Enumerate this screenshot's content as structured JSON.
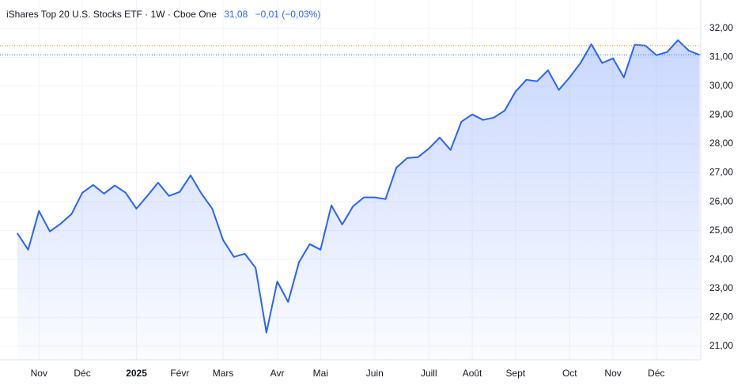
{
  "chart_data": {
    "type": "area",
    "title": "iShares Top 20 U.S. Stocks ETF · 1W · Cboe One",
    "price_label": "31,08",
    "change_label": "−0,01 (−0,03%)",
    "color": "#2962ff",
    "values": [
      24.91,
      24.34,
      25.68,
      24.97,
      25.24,
      25.57,
      26.31,
      26.58,
      26.28,
      26.56,
      26.31,
      25.76,
      26.2,
      26.66,
      26.2,
      26.34,
      26.91,
      26.28,
      25.76,
      24.67,
      24.09,
      24.2,
      23.71,
      21.47,
      23.24,
      22.53,
      23.9,
      24.53,
      24.34,
      25.87,
      25.21,
      25.84,
      26.15,
      26.15,
      26.09,
      27.18,
      27.51,
      27.54,
      27.84,
      28.22,
      27.79,
      28.77,
      29.02,
      28.83,
      28.91,
      29.15,
      29.81,
      30.22,
      30.17,
      30.55,
      29.87,
      30.3,
      30.8,
      31.45,
      30.8,
      30.96,
      30.3,
      31.43,
      31.4,
      31.07,
      31.18,
      31.59,
      31.23,
      31.08
    ],
    "xlim": [
      -1.6,
      63.1
    ],
    "xticks": [
      {
        "value": 2,
        "label": "Nov"
      },
      {
        "value": 6,
        "label": "Déc"
      },
      {
        "value": 11,
        "label": "2025"
      },
      {
        "value": 15,
        "label": "Févr"
      },
      {
        "value": 19,
        "label": "Mars"
      },
      {
        "value": 24,
        "label": "Avr"
      },
      {
        "value": 28,
        "label": "Mai"
      },
      {
        "value": 33,
        "label": "Juin"
      },
      {
        "value": 38,
        "label": "Juill"
      },
      {
        "value": 42,
        "label": "Août"
      },
      {
        "value": 46,
        "label": "Sept"
      },
      {
        "value": 51,
        "label": "Oct"
      },
      {
        "value": 55,
        "label": "Nov"
      },
      {
        "value": 59,
        "label": "Déc"
      }
    ],
    "ylim": [
      20.53,
      32.98
    ],
    "yticks": [
      {
        "value": 21,
        "label": "21,00"
      },
      {
        "value": 22,
        "label": "22,00"
      },
      {
        "value": 23,
        "label": "23,00"
      },
      {
        "value": 24,
        "label": "24,00"
      },
      {
        "value": 25,
        "label": "25,00"
      },
      {
        "value": 26,
        "label": "26,00"
      },
      {
        "value": 27,
        "label": "27,00"
      },
      {
        "value": 28,
        "label": "28,00"
      },
      {
        "value": 29,
        "label": "29,00"
      },
      {
        "value": 30,
        "label": "30,00"
      },
      {
        "value": 31,
        "label": "31,00"
      },
      {
        "value": 32,
        "label": "32,00"
      }
    ],
    "reference_lines": [
      {
        "value": 31.4,
        "color": "#f7a600"
      },
      {
        "value": 31.08,
        "color": "#2962ff"
      }
    ],
    "grid": true
  }
}
